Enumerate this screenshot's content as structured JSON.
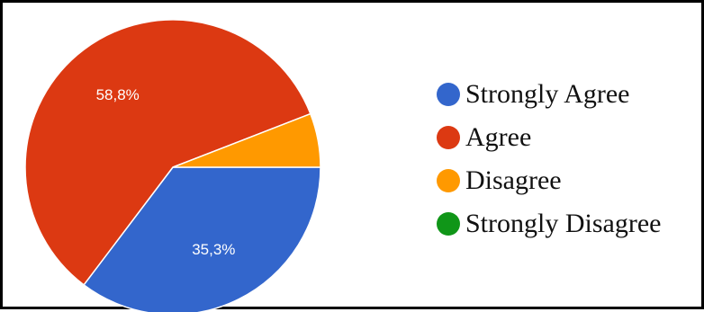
{
  "chart_data": {
    "type": "pie",
    "categories": [
      "Strongly Agree",
      "Agree",
      "Disagree",
      "Strongly Disagree"
    ],
    "values": [
      35.3,
      58.8,
      5.9,
      0
    ],
    "labels": [
      "35,3%",
      "58,8%",
      "",
      ""
    ],
    "colors": [
      "#3366cc",
      "#dc3912",
      "#ff9900",
      "#109618"
    ],
    "legend_position": "right"
  }
}
